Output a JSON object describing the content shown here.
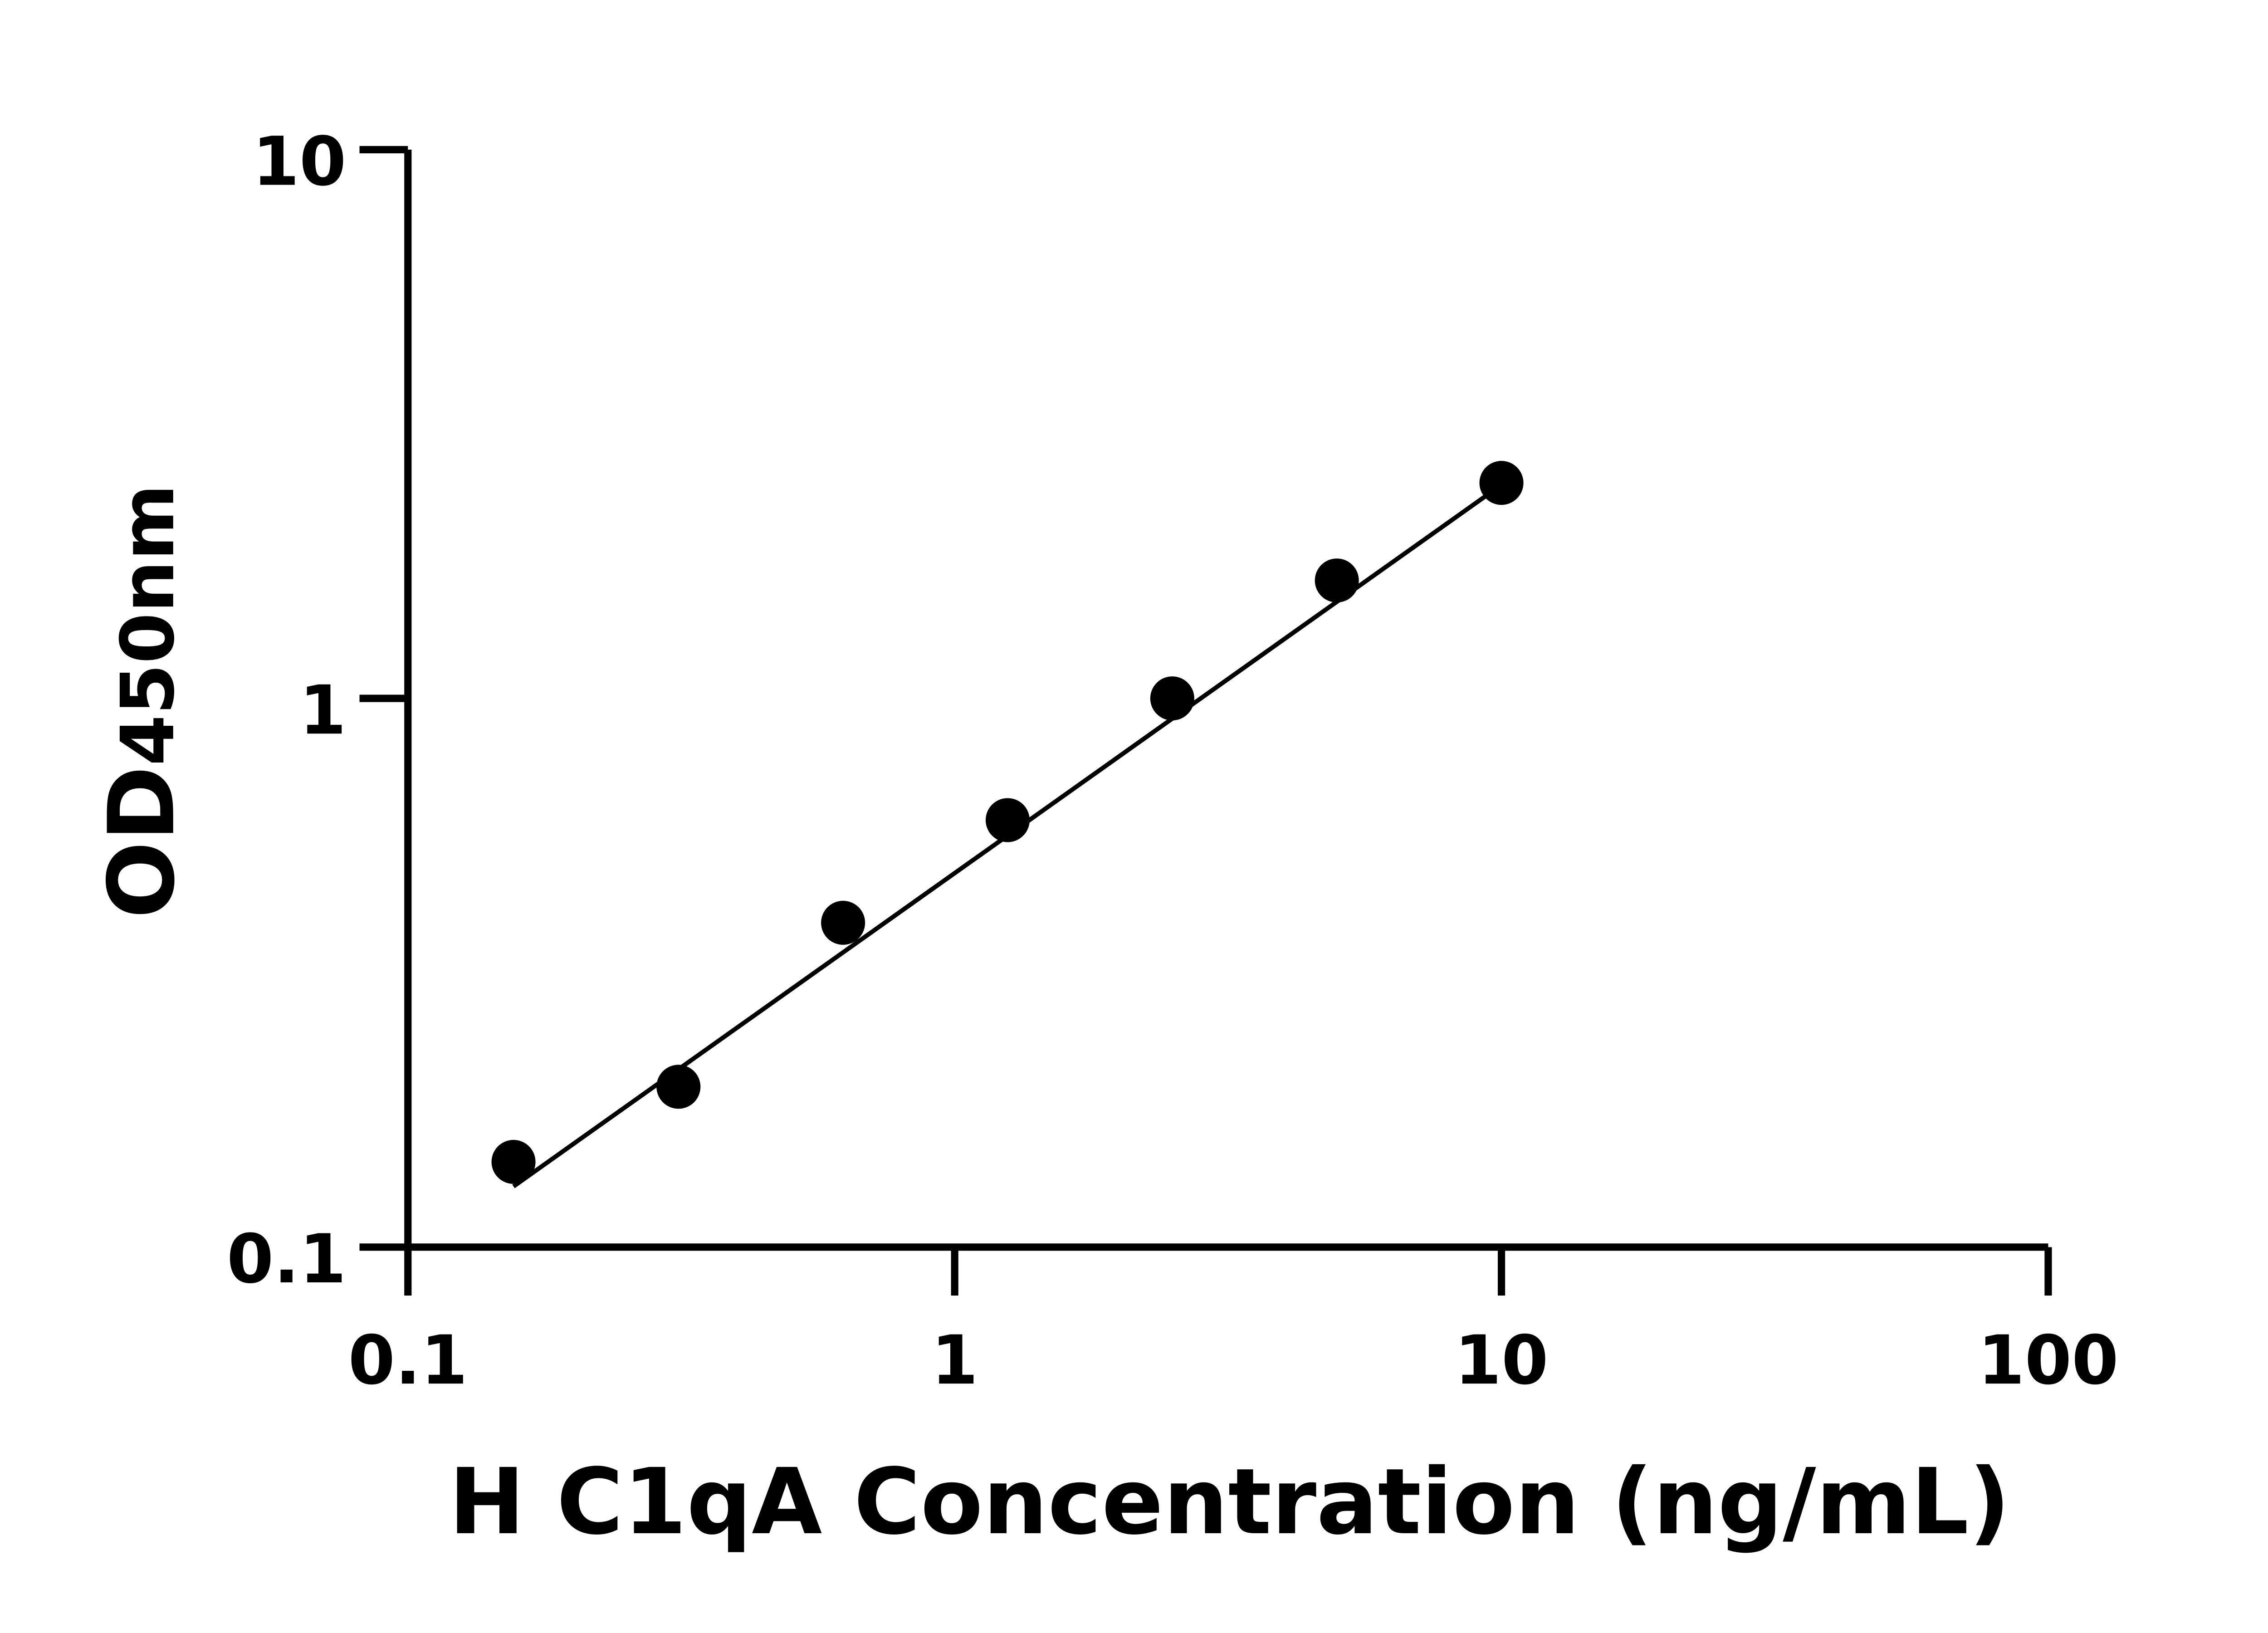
{
  "chart_data": {
    "type": "scatter",
    "title": "",
    "xlabel": "H C1qA Concentration (ng/mL)",
    "ylabel": "OD450nm",
    "ylabel_parts": {
      "main": "OD",
      "sub": "450nm"
    },
    "x_scale": "log",
    "y_scale": "log",
    "xlim": [
      0.1,
      100
    ],
    "ylim": [
      0.1,
      10
    ],
    "x_ticks": [
      0.1,
      1,
      10,
      100
    ],
    "x_tick_labels": [
      "0.1",
      "1",
      "10",
      "100"
    ],
    "y_ticks": [
      0.1,
      1,
      10
    ],
    "y_tick_labels": [
      "0.1",
      "1",
      "10"
    ],
    "grid": false,
    "series": [
      {
        "type": "scatter",
        "x": [
          0.156,
          0.3125,
          0.625,
          1.25,
          2.5,
          5,
          10
        ],
        "y": [
          0.143,
          0.196,
          0.39,
          0.6,
          1.0,
          1.64,
          2.47
        ],
        "color": "#000000"
      },
      {
        "type": "line",
        "x": [
          0.156,
          10
        ],
        "y": [
          0.129,
          2.45
        ],
        "color": "#000000"
      }
    ]
  }
}
